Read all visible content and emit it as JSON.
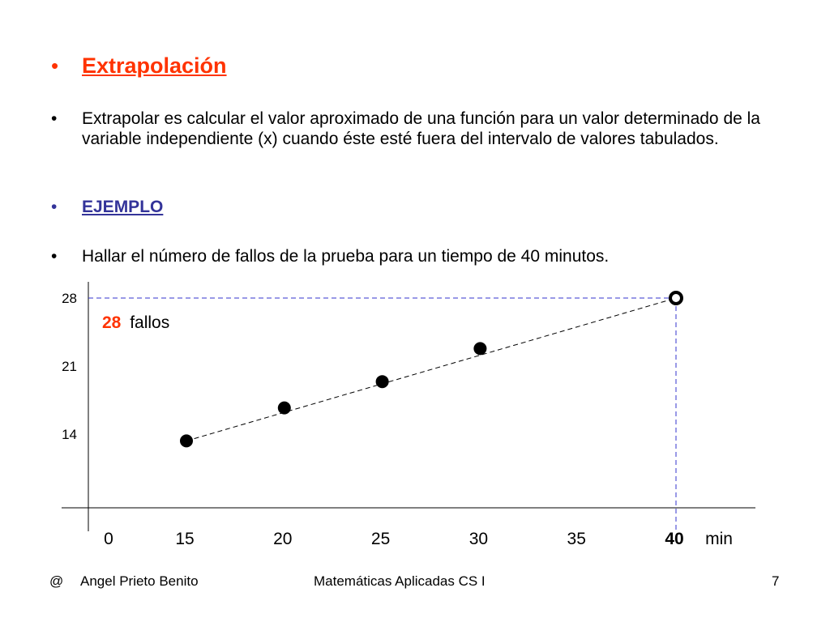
{
  "slide": {
    "title": "Extrapolación",
    "definition": "Extrapolar es calcular el valor aproximado de una función para un valor determinado de la variable independiente (x) cuando éste esté fuera del intervalo de valores tabulados.",
    "example_heading": "EJEMPLO",
    "task": "Hallar el número de fallos de la prueba para un  tiempo de 40 minutos.",
    "bullet": "•"
  },
  "annotation": {
    "value": "28",
    "label": "fallos"
  },
  "chart_data": {
    "type": "scatter",
    "x_unit_label": "min",
    "x_ticks": [
      "0",
      "15",
      "20",
      "25",
      "30",
      "35",
      "40"
    ],
    "y_ticks": [
      "14",
      "21",
      "28"
    ],
    "points": [
      {
        "x": 15,
        "y": 13.3
      },
      {
        "x": 20,
        "y": 16.7
      },
      {
        "x": 25,
        "y": 19.4
      },
      {
        "x": 30,
        "y": 22.8
      }
    ],
    "extrapolated_point": {
      "x": 40,
      "y": 28
    },
    "highlight_x_label": "40",
    "colors": {
      "guide": "#3333cc",
      "highlight": "#ff3300",
      "trend": "#000000"
    }
  },
  "footer": {
    "at": "@",
    "author": "Angel Prieto Benito",
    "course": "Matemáticas Aplicadas CS I",
    "page": "7"
  }
}
